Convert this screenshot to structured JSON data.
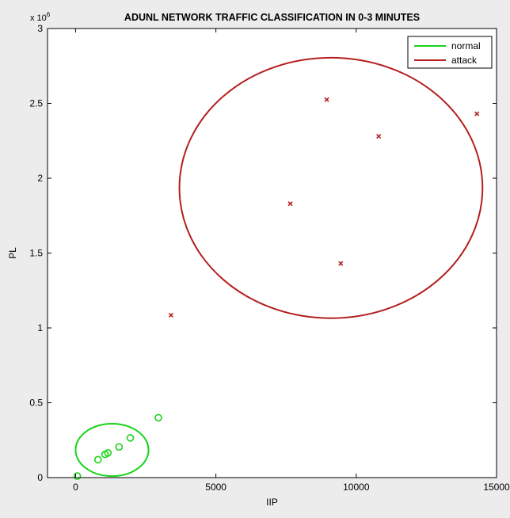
{
  "chart_data": {
    "type": "scatter",
    "title": "ADUNL NETWORK TRAFFIC CLASSIFICATION IN 0-3 MINUTES",
    "xlabel": "IIP",
    "ylabel": "PL",
    "xlim": [
      -1000,
      15000
    ],
    "ylim": [
      0,
      3000000
    ],
    "x_ticks": [
      0,
      5000,
      10000,
      15000
    ],
    "x_tick_labels": [
      "0",
      "5000",
      "10000",
      "15000"
    ],
    "y_ticks": [
      0,
      500000,
      1000000,
      1500000,
      2000000,
      2500000,
      3000000
    ],
    "y_tick_labels": [
      "0",
      "0.5",
      "1",
      "1.5",
      "2",
      "2.5",
      "3"
    ],
    "y_multiplier": "x 10",
    "y_multiplier_exp": "6",
    "grid": false,
    "legend": {
      "placement": "top-right",
      "entries": [
        {
          "label": "normal",
          "color": "#19d319"
        },
        {
          "label": "attack",
          "color": "#b41e1e"
        }
      ]
    },
    "series": [
      {
        "legend_ref": "normal",
        "color": "#19d319",
        "marker": "circle",
        "points": [
          [
            60,
            10000
          ],
          [
            800,
            120000
          ],
          [
            1050,
            155000
          ],
          [
            1150,
            165000
          ],
          [
            1550,
            205000
          ],
          [
            1950,
            265000
          ],
          [
            2950,
            400000
          ]
        ],
        "ellipse": {
          "cx": 1300,
          "cy": 185000,
          "rx": 1300,
          "ry": 175000
        }
      },
      {
        "legend_ref": "attack",
        "color": "#b41e1e",
        "marker": "x",
        "points": [
          [
            3400,
            1085000
          ],
          [
            7650,
            1830000
          ],
          [
            8950,
            2525000
          ],
          [
            9450,
            1430000
          ],
          [
            10800,
            2280000
          ],
          [
            14300,
            2430000
          ]
        ],
        "ellipse": {
          "cx": 9100,
          "cy": 1935000,
          "rx": 5400,
          "ry": 870000
        }
      }
    ]
  }
}
